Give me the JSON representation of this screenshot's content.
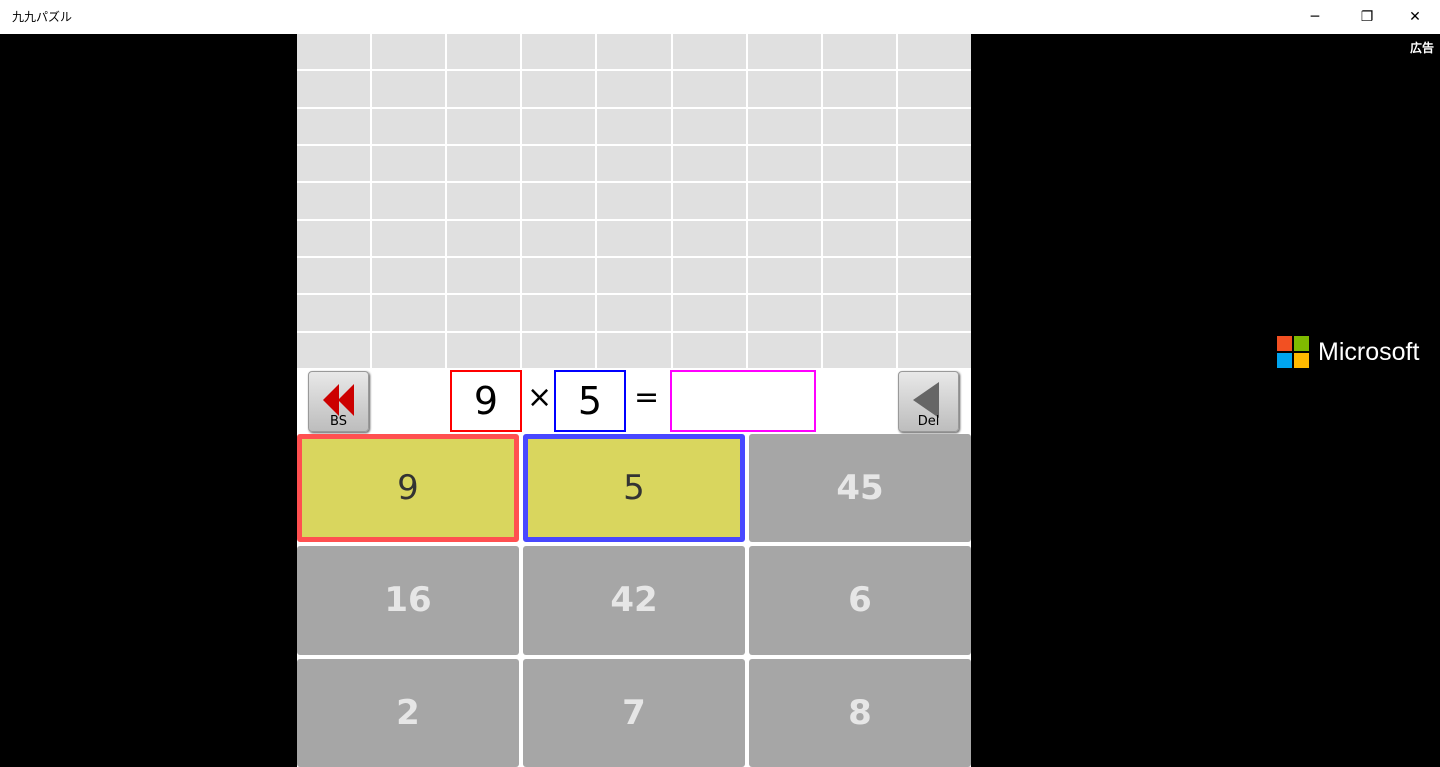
{
  "window": {
    "title": "九九パズル",
    "minimize": "─",
    "restore": "❐",
    "close": "✕"
  },
  "grid": {
    "rows": 9,
    "cols": 9
  },
  "equation": {
    "left": "9",
    "times": "×",
    "right": "5",
    "equals": "=",
    "result": ""
  },
  "buttons": {
    "backspace": "BS",
    "delete": "Del"
  },
  "keys": [
    {
      "value": "9",
      "state": "selected-first"
    },
    {
      "value": "5",
      "state": "selected-second"
    },
    {
      "value": "45",
      "state": "normal"
    },
    {
      "value": "16",
      "state": "normal"
    },
    {
      "value": "42",
      "state": "normal"
    },
    {
      "value": "6",
      "state": "normal"
    },
    {
      "value": "2",
      "state": "normal"
    },
    {
      "value": "7",
      "state": "normal"
    },
    {
      "value": "8",
      "state": "normal"
    }
  ],
  "ad": {
    "label": "広告",
    "brand": "Microsoft"
  },
  "colors": {
    "first": "#ff0000",
    "second": "#0000ff",
    "result": "#ff00ff",
    "selected_fill": "#d9d65e",
    "key_fill": "#a6a6a6"
  }
}
